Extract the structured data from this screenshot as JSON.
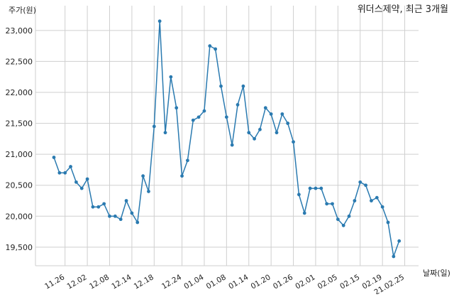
{
  "chart_data": {
    "type": "line",
    "title": "위더스제약, 최근 3개월",
    "xlabel": "날짜(일)",
    "ylabel": "주가(원)",
    "ylim": [
      19200,
      23400
    ],
    "yticks": [
      19500,
      20000,
      20500,
      21000,
      21500,
      22000,
      22500,
      23000
    ],
    "xticks": [
      {
        "idx": 2,
        "label": "11.26"
      },
      {
        "idx": 6,
        "label": "12.02"
      },
      {
        "idx": 10,
        "label": "12.08"
      },
      {
        "idx": 14,
        "label": "12.14"
      },
      {
        "idx": 18,
        "label": "12.18"
      },
      {
        "idx": 23,
        "label": "12.24"
      },
      {
        "idx": 27,
        "label": "01.04"
      },
      {
        "idx": 31,
        "label": "01.08"
      },
      {
        "idx": 35,
        "label": "01.14"
      },
      {
        "idx": 39,
        "label": "01.20"
      },
      {
        "idx": 43,
        "label": "01.26"
      },
      {
        "idx": 47,
        "label": "02.01"
      },
      {
        "idx": 51,
        "label": "02.05"
      },
      {
        "idx": 55,
        "label": "02.15"
      },
      {
        "idx": 59,
        "label": "02.19"
      },
      {
        "idx": 63,
        "label": "21.02.25"
      }
    ],
    "grid": true,
    "color": "#2a7ab0",
    "series": [
      {
        "values": [
          20950,
          20700,
          20700,
          20800,
          20550,
          20450,
          20600,
          20150,
          20150,
          20200,
          20000,
          20000,
          19950,
          20250,
          20050,
          19900,
          20650,
          20400,
          21450,
          23150,
          21350,
          22250,
          21750,
          20650,
          20900,
          21550,
          21600,
          21700,
          22750,
          22700,
          22100,
          21600,
          21150,
          21800,
          22100,
          21350,
          21250,
          21400,
          21750,
          21650,
          21350,
          21650,
          21500,
          21200,
          20350,
          20050,
          20450,
          20450,
          20450,
          20200,
          20200,
          19950,
          19850,
          20000,
          20250,
          20550,
          20500,
          20250,
          20300,
          20150,
          19900,
          19350,
          19600
        ]
      }
    ]
  }
}
